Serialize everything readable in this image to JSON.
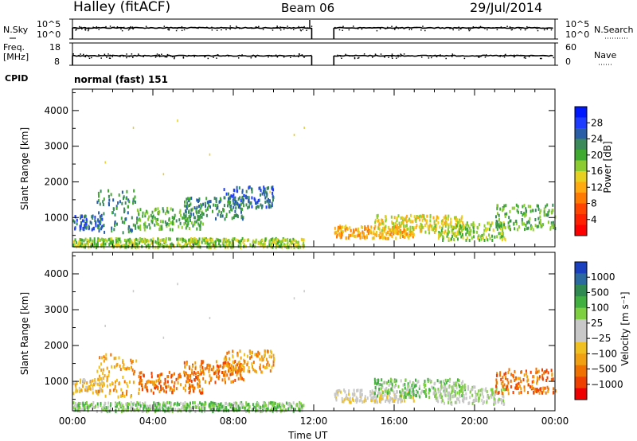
{
  "header": {
    "station": "Halley (fitACF)",
    "beam": "Beam 06",
    "date": "29/Jul/2014"
  },
  "summary": {
    "nsky_label": "N.Sky",
    "nsearch_label": "N.Search",
    "noise_ticks_left": [
      "10^5",
      "10^0"
    ],
    "noise_ticks_right": [
      "10^5",
      "10^0"
    ],
    "freq_label_1": "Freq.",
    "freq_label_2": "[MHz]",
    "freq_ticks": [
      "18",
      "8"
    ],
    "nave_label": "Nave",
    "nave_ticks": [
      "60",
      "0"
    ],
    "cpid_label": "CPID",
    "cpid_value": "normal (fast) 151"
  },
  "chart_data": [
    {
      "type": "heatmap",
      "name": "power",
      "ylabel": "Slant Range [km]",
      "yticks": [
        "1000",
        "2000",
        "3000",
        "4000"
      ],
      "ylim": [
        180,
        4600
      ],
      "xlim": [
        0,
        24
      ],
      "colorbar": {
        "title": "Power [dB]",
        "ticks": [
          "4",
          "8",
          "12",
          "16",
          "20",
          "24",
          "28"
        ],
        "colors": [
          "#0018ff",
          "#1e3cff",
          "#2a5fa8",
          "#3a8a5a",
          "#40aa30",
          "#8ccc30",
          "#e8d020",
          "#ffaa10",
          "#ff7a00",
          "#ff4400",
          "#ff2000",
          "#ff0000"
        ]
      },
      "regions": [
        {
          "x": [
            0,
            1.5
          ],
          "r": [
            700,
            1100
          ],
          "level": 2
        },
        {
          "x": [
            1.2,
            3.2
          ],
          "r": [
            600,
            1800
          ],
          "level": 3
        },
        {
          "x": [
            3.2,
            6.5
          ],
          "r": [
            700,
            1300
          ],
          "level": 4
        },
        {
          "x": [
            5.5,
            8.5
          ],
          "r": [
            1000,
            1600
          ],
          "level": 3
        },
        {
          "x": [
            7.5,
            10
          ],
          "r": [
            1300,
            1900
          ],
          "level": 2
        },
        {
          "x": [
            0,
            11.5
          ],
          "r": [
            200,
            450
          ],
          "level": 5
        },
        {
          "x": [
            13,
            17
          ],
          "r": [
            450,
            800
          ],
          "level": 7
        },
        {
          "x": [
            15,
            19.5
          ],
          "r": [
            600,
            1100
          ],
          "level": 6
        },
        {
          "x": [
            18,
            21.5
          ],
          "r": [
            400,
            900
          ],
          "level": 5
        },
        {
          "x": [
            21,
            24
          ],
          "r": [
            700,
            1400
          ],
          "level": 4
        }
      ]
    },
    {
      "type": "heatmap",
      "name": "velocity",
      "xlabel": "Time UT",
      "ylabel": "Slant Range [km]",
      "yticks": [
        "1000",
        "2000",
        "3000",
        "4000"
      ],
      "xticks": [
        "00:00",
        "04:00",
        "08:00",
        "12:00",
        "16:00",
        "20:00",
        "00:00"
      ],
      "ylim": [
        180,
        4600
      ],
      "xlim": [
        0,
        24
      ],
      "colorbar": {
        "title": "Velocity [m s⁻¹]",
        "ticks": [
          "1000",
          "500",
          "100",
          "25",
          "−25",
          "−100",
          "−500",
          "−1000"
        ],
        "colors": [
          "#1a40c0",
          "#2a6aa0",
          "#2e8a50",
          "#40b040",
          "#7ed040",
          "#c8c8c8",
          "#c8c8c8",
          "#f0c020",
          "#f0a010",
          "#f07000",
          "#f04000",
          "#f00000"
        ]
      },
      "regions": [
        {
          "x": [
            0,
            1.5
          ],
          "r": [
            700,
            1100
          ],
          "level": 7
        },
        {
          "x": [
            1.2,
            3.2
          ],
          "r": [
            600,
            1800
          ],
          "level": 8
        },
        {
          "x": [
            3.2,
            6.5
          ],
          "r": [
            700,
            1300
          ],
          "level": 9
        },
        {
          "x": [
            5.5,
            8.5
          ],
          "r": [
            1000,
            1600
          ],
          "level": 9
        },
        {
          "x": [
            7.5,
            10
          ],
          "r": [
            1300,
            1900
          ],
          "level": 8
        },
        {
          "x": [
            0,
            11.5
          ],
          "r": [
            200,
            450
          ],
          "level": 4
        },
        {
          "x": [
            13,
            17
          ],
          "r": [
            450,
            800
          ],
          "level": 6
        },
        {
          "x": [
            15,
            19.5
          ],
          "r": [
            600,
            1100
          ],
          "level": 4
        },
        {
          "x": [
            18,
            21.5
          ],
          "r": [
            400,
            900
          ],
          "level": 5
        },
        {
          "x": [
            21,
            24
          ],
          "r": [
            700,
            1400
          ],
          "level": 9
        }
      ]
    }
  ]
}
